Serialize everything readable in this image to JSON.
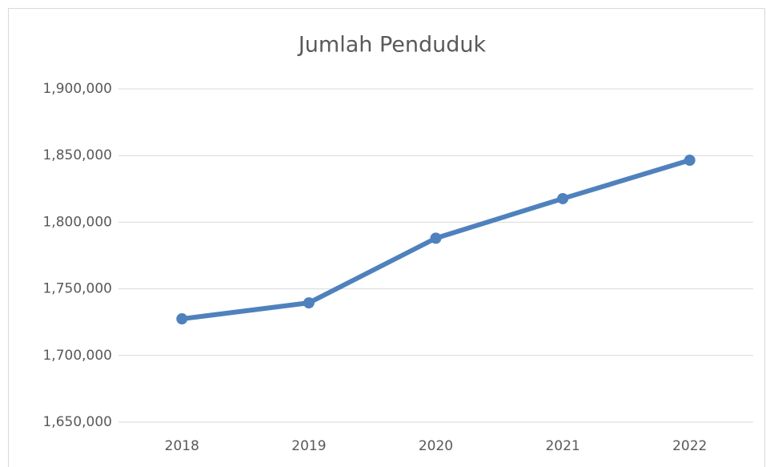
{
  "chart_data": {
    "type": "line",
    "title": "Jumlah Penduduk",
    "categories": [
      "2018",
      "2019",
      "2020",
      "2021",
      "2022"
    ],
    "series": [
      {
        "name": "Jumlah Penduduk",
        "color": "#4f81bd",
        "values": [
          1727500,
          1739500,
          1788000,
          1817700,
          1846500
        ]
      }
    ],
    "ylim": [
      1650000,
      1900000
    ],
    "yticks": [
      {
        "value": 1650000,
        "label": "1,650,000"
      },
      {
        "value": 1700000,
        "label": "1,700,000"
      },
      {
        "value": 1750000,
        "label": "1,750,000"
      },
      {
        "value": 1800000,
        "label": "1,800,000"
      },
      {
        "value": 1850000,
        "label": "1,850,000"
      },
      {
        "value": 1900000,
        "label": "1,900,000"
      }
    ],
    "grid": true
  }
}
